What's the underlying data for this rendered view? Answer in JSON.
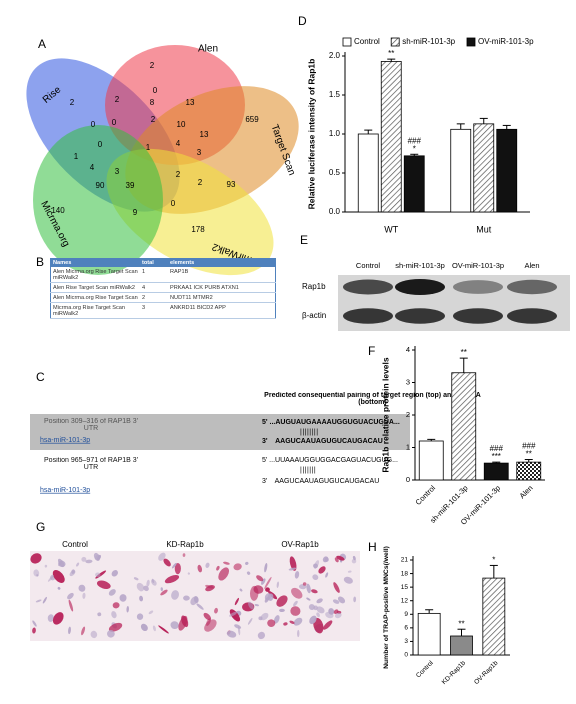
{
  "panel_labels": [
    "A",
    "B",
    "C",
    "D",
    "E",
    "F",
    "G",
    "H"
  ],
  "venn": {
    "sets": [
      {
        "name": "Rise",
        "color": "#2f55e0"
      },
      {
        "name": "Alen",
        "color": "#ef3b4a"
      },
      {
        "name": "Target Scan",
        "color": "#de8a25"
      },
      {
        "name": "mirWalk2",
        "color": "#f0e23a"
      },
      {
        "name": "Micrma.org",
        "color": "#35c040"
      }
    ],
    "counts": [
      2,
      2,
      2,
      0,
      8,
      13,
      659,
      0,
      0,
      2,
      10,
      13,
      0,
      1,
      4,
      3,
      1,
      4,
      3,
      2,
      2,
      90,
      39,
      93,
      140,
      9,
      0,
      178
    ]
  },
  "table": {
    "header": [
      "Names",
      "total",
      "elements"
    ],
    "rows": [
      [
        "Alen Micrma.org Rise Target Scan miRWalk2",
        "1",
        "RAP1B"
      ],
      [
        "Alen Rise Target Scan miRWalk2",
        "4",
        "PRKAA1 ICK PURB ATXN1"
      ],
      [
        "Alen Micrma.org Rise Target Scan",
        "2",
        "NUDT11 MTMR2"
      ],
      [
        "Micrma.org Rise Target Scan miRWalk2",
        "3",
        "ANKRD11 BICD2 APP"
      ]
    ]
  },
  "alignment": {
    "title": "Predicted consequential pairing of target region (top) and miRNA (bottom)",
    "rows": [
      {
        "position": "Position 309–316 of RAP1B 3' UTR",
        "mirna": "hsa-miR-101-3p",
        "target": "5' ...AUGUAUGAAAAUGGUGUACUGUA...",
        "pairing": "||||||||",
        "seed": "3'    AAGUCAAUAGUGUCAUGACAU"
      },
      {
        "position": "Position 965–971 of RAP1B 3' UTR",
        "mirna": "hsa-miR-101-3p",
        "target": "5' ...UUAAAUGGUGGACGAGUACUGUG...",
        "pairing": "|||||||",
        "seed": "3'    AAGUCAAUAGUGUCAUGACAU"
      }
    ]
  },
  "blot": {
    "lanes": [
      "Control",
      "sh-miR-101-3p",
      "OV-miR-101-3p",
      "Alen"
    ],
    "proteins": [
      "Rap1b",
      "β-actin"
    ]
  },
  "micrograph": {
    "groups": [
      "Control",
      "KD-Rap1b",
      "OV-Rap1b"
    ]
  },
  "chart_data": [
    {
      "type": "bar",
      "ylabel": "Relative luciferase intensity of Rap1b",
      "categories": [
        "WT",
        "Mut"
      ],
      "series": [
        {
          "name": "Control",
          "fill": "white",
          "values": [
            1.0,
            1.06
          ],
          "errors": [
            0.05,
            0.07
          ],
          "annotations": [
            null,
            null
          ]
        },
        {
          "name": "sh-miR-101-3p",
          "fill": "hatch",
          "values": [
            1.93,
            1.13
          ],
          "errors": [
            0.03,
            0.07
          ],
          "annotations": [
            [
              "**"
            ],
            null
          ]
        },
        {
          "name": "OV-miR-101-3p",
          "fill": "black",
          "values": [
            0.72,
            1.06
          ],
          "errors": [
            0.02,
            0.05
          ],
          "annotations": [
            [
              "###",
              "*"
            ],
            null
          ]
        }
      ],
      "ylim": [
        0,
        2
      ],
      "yticks": [
        {
          "value": 0,
          "label": "0.0"
        },
        {
          "value": 0.5,
          "label": "0.5"
        },
        {
          "value": 1,
          "label": "1.0"
        },
        {
          "value": 1.5,
          "label": "1.5"
        },
        {
          "value": 2,
          "label": "2.0"
        }
      ],
      "legend": "top"
    },
    {
      "type": "bar",
      "ylabel": "Rap1b relative protein levels",
      "categories": [
        "Control",
        "sh-miR-101-3p",
        "OV-miR-101-3p",
        "Alen"
      ],
      "values": [
        1.2,
        3.3,
        0.52,
        0.55
      ],
      "errors": [
        0.05,
        0.45,
        0.03,
        0.08
      ],
      "annotations": [
        null,
        [
          "**"
        ],
        [
          "###",
          "***"
        ],
        [
          "###",
          "**"
        ]
      ],
      "fills": [
        "white",
        "hatch",
        "black",
        "check"
      ],
      "ylim": [
        0,
        4
      ],
      "yticks": [
        0,
        1,
        2,
        3,
        4
      ]
    },
    {
      "type": "bar",
      "ylabel": "Number of TRAP-positive MNCs(/well)",
      "categories": [
        "Control",
        "KD-Rap1b",
        "OV-Rap1b"
      ],
      "values": [
        9.2,
        4.2,
        17.0
      ],
      "errors": [
        0.8,
        1.5,
        2.8
      ],
      "annotations": [
        null,
        [
          "**"
        ],
        [
          "*"
        ]
      ],
      "fills": [
        "white",
        "gray",
        "hatch"
      ],
      "ylim": [
        0,
        21
      ],
      "yticks": [
        0,
        3,
        6,
        9,
        12,
        15,
        18,
        21
      ]
    }
  ]
}
